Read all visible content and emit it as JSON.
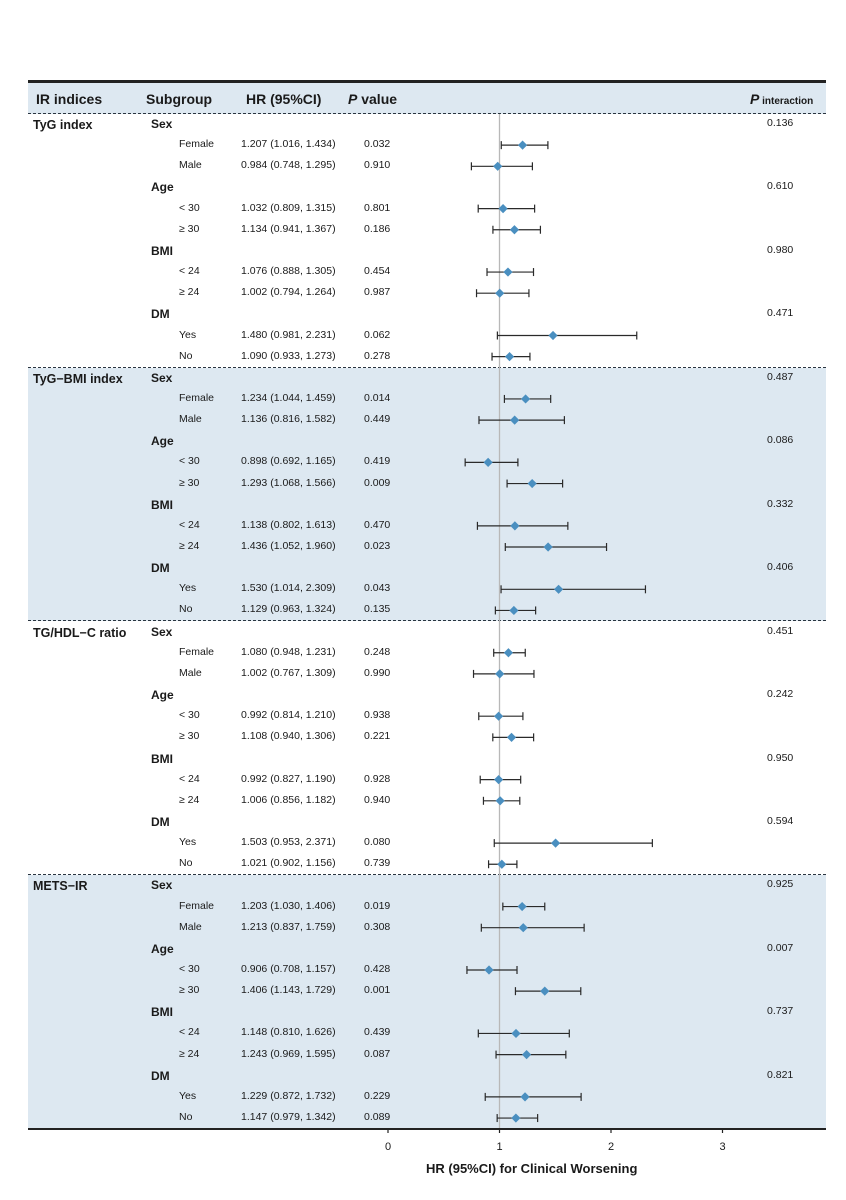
{
  "headers": {
    "ir_indices": "IR indices",
    "subgroup": "Subgroup",
    "hr": "HR (95%CI)",
    "p_italic": "P",
    "p_rest": " value",
    "pint_italic": "P",
    "pint_rest": " interaction"
  },
  "chart_data": {
    "type": "forest",
    "xlabel": "HR (95%CI) for Clinical Worsening",
    "x_ticks": [
      0,
      1,
      2,
      3
    ],
    "xlim": [
      0,
      3.3
    ],
    "reference_line": 1,
    "groups": [
      {
        "name": "TyG index",
        "subgroups": [
          {
            "name": "Sex",
            "p_interaction": "0.136",
            "levels": [
              {
                "label": "Female",
                "hr_text": "1.207 (1.016, 1.434)",
                "p": "0.032",
                "hr": 1.207,
                "lo": 1.016,
                "hi": 1.434
              },
              {
                "label": "Male",
                "hr_text": "0.984 (0.748, 1.295)",
                "p": "0.910",
                "hr": 0.984,
                "lo": 0.748,
                "hi": 1.295
              }
            ]
          },
          {
            "name": "Age",
            "p_interaction": "0.610",
            "levels": [
              {
                "label": "< 30",
                "hr_text": "1.032 (0.809, 1.315)",
                "p": "0.801",
                "hr": 1.032,
                "lo": 0.809,
                "hi": 1.315
              },
              {
                "label": "≥ 30",
                "hr_text": "1.134 (0.941, 1.367)",
                "p": "0.186",
                "hr": 1.134,
                "lo": 0.941,
                "hi": 1.367
              }
            ]
          },
          {
            "name": "BMI",
            "p_interaction": "0.980",
            "levels": [
              {
                "label": "< 24",
                "hr_text": "1.076 (0.888, 1.305)",
                "p": "0.454",
                "hr": 1.076,
                "lo": 0.888,
                "hi": 1.305
              },
              {
                "label": "≥ 24",
                "hr_text": "1.002 (0.794, 1.264)",
                "p": "0.987",
                "hr": 1.002,
                "lo": 0.794,
                "hi": 1.264
              }
            ]
          },
          {
            "name": "DM",
            "p_interaction": "0.471",
            "levels": [
              {
                "label": "Yes",
                "hr_text": "1.480 (0.981, 2.231)",
                "p": "0.062",
                "hr": 1.48,
                "lo": 0.981,
                "hi": 2.231
              },
              {
                "label": "No",
                "hr_text": "1.090 (0.933, 1.273)",
                "p": "0.278",
                "hr": 1.09,
                "lo": 0.933,
                "hi": 1.273
              }
            ]
          }
        ]
      },
      {
        "name": "TyG−BMI index",
        "subgroups": [
          {
            "name": "Sex",
            "p_interaction": "0.487",
            "levels": [
              {
                "label": "Female",
                "hr_text": "1.234 (1.044, 1.459)",
                "p": "0.014",
                "hr": 1.234,
                "lo": 1.044,
                "hi": 1.459
              },
              {
                "label": "Male",
                "hr_text": "1.136 (0.816, 1.582)",
                "p": "0.449",
                "hr": 1.136,
                "lo": 0.816,
                "hi": 1.582
              }
            ]
          },
          {
            "name": "Age",
            "p_interaction": "0.086",
            "levels": [
              {
                "label": "< 30",
                "hr_text": "0.898 (0.692, 1.165)",
                "p": "0.419",
                "hr": 0.898,
                "lo": 0.692,
                "hi": 1.165
              },
              {
                "label": "≥ 30",
                "hr_text": "1.293 (1.068, 1.566)",
                "p": "0.009",
                "hr": 1.293,
                "lo": 1.068,
                "hi": 1.566
              }
            ]
          },
          {
            "name": "BMI",
            "p_interaction": "0.332",
            "levels": [
              {
                "label": "< 24",
                "hr_text": "1.138 (0.802, 1.613)",
                "p": "0.470",
                "hr": 1.138,
                "lo": 0.802,
                "hi": 1.613
              },
              {
                "label": "≥ 24",
                "hr_text": "1.436 (1.052, 1.960)",
                "p": "0.023",
                "hr": 1.436,
                "lo": 1.052,
                "hi": 1.96
              }
            ]
          },
          {
            "name": "DM",
            "p_interaction": "0.406",
            "levels": [
              {
                "label": "Yes",
                "hr_text": "1.530 (1.014, 2.309)",
                "p": "0.043",
                "hr": 1.53,
                "lo": 1.014,
                "hi": 2.309
              },
              {
                "label": "No",
                "hr_text": "1.129 (0.963, 1.324)",
                "p": "0.135",
                "hr": 1.129,
                "lo": 0.963,
                "hi": 1.324
              }
            ]
          }
        ]
      },
      {
        "name": "TG/HDL−C ratio",
        "subgroups": [
          {
            "name": "Sex",
            "p_interaction": "0.451",
            "levels": [
              {
                "label": "Female",
                "hr_text": "1.080 (0.948, 1.231)",
                "p": "0.248",
                "hr": 1.08,
                "lo": 0.948,
                "hi": 1.231
              },
              {
                "label": "Male",
                "hr_text": "1.002 (0.767, 1.309)",
                "p": "0.990",
                "hr": 1.002,
                "lo": 0.767,
                "hi": 1.309
              }
            ]
          },
          {
            "name": "Age",
            "p_interaction": "0.242",
            "levels": [
              {
                "label": "< 30",
                "hr_text": "0.992 (0.814, 1.210)",
                "p": "0.938",
                "hr": 0.992,
                "lo": 0.814,
                "hi": 1.21
              },
              {
                "label": "≥ 30",
                "hr_text": "1.108 (0.940, 1.306)",
                "p": "0.221",
                "hr": 1.108,
                "lo": 0.94,
                "hi": 1.306
              }
            ]
          },
          {
            "name": "BMI",
            "p_interaction": "0.950",
            "levels": [
              {
                "label": "< 24",
                "hr_text": "0.992 (0.827, 1.190)",
                "p": "0.928",
                "hr": 0.992,
                "lo": 0.827,
                "hi": 1.19
              },
              {
                "label": "≥ 24",
                "hr_text": "1.006 (0.856, 1.182)",
                "p": "0.940",
                "hr": 1.006,
                "lo": 0.856,
                "hi": 1.182
              }
            ]
          },
          {
            "name": "DM",
            "p_interaction": "0.594",
            "levels": [
              {
                "label": "Yes",
                "hr_text": "1.503 (0.953, 2.371)",
                "p": "0.080",
                "hr": 1.503,
                "lo": 0.953,
                "hi": 2.371
              },
              {
                "label": "No",
                "hr_text": "1.021 (0.902, 1.156)",
                "p": "0.739",
                "hr": 1.021,
                "lo": 0.902,
                "hi": 1.156
              }
            ]
          }
        ]
      },
      {
        "name": "METS−IR",
        "subgroups": [
          {
            "name": "Sex",
            "p_interaction": "0.925",
            "levels": [
              {
                "label": "Female",
                "hr_text": "1.203 (1.030, 1.406)",
                "p": "0.019",
                "hr": 1.203,
                "lo": 1.03,
                "hi": 1.406
              },
              {
                "label": "Male",
                "hr_text": "1.213 (0.837, 1.759)",
                "p": "0.308",
                "hr": 1.213,
                "lo": 0.837,
                "hi": 1.759
              }
            ]
          },
          {
            "name": "Age",
            "p_interaction": "0.007",
            "levels": [
              {
                "label": "< 30",
                "hr_text": "0.906 (0.708, 1.157)",
                "p": "0.428",
                "hr": 0.906,
                "lo": 0.708,
                "hi": 1.157
              },
              {
                "label": "≥ 30",
                "hr_text": "1.406 (1.143, 1.729)",
                "p": "0.001",
                "hr": 1.406,
                "lo": 1.143,
                "hi": 1.729
              }
            ]
          },
          {
            "name": "BMI",
            "p_interaction": "0.737",
            "levels": [
              {
                "label": "< 24",
                "hr_text": "1.148 (0.810, 1.626)",
                "p": "0.439",
                "hr": 1.148,
                "lo": 0.81,
                "hi": 1.626
              },
              {
                "label": "≥ 24",
                "hr_text": "1.243 (0.969, 1.595)",
                "p": "0.087",
                "hr": 1.243,
                "lo": 0.969,
                "hi": 1.595
              }
            ]
          },
          {
            "name": "DM",
            "p_interaction": "0.821",
            "levels": [
              {
                "label": "Yes",
                "hr_text": "1.229 (0.872, 1.732)",
                "p": "0.229",
                "hr": 1.229,
                "lo": 0.872,
                "hi": 1.732
              },
              {
                "label": "No",
                "hr_text": "1.147 (0.979, 1.342)",
                "p": "0.089",
                "hr": 1.147,
                "lo": 0.979,
                "hi": 1.342
              }
            ]
          }
        ]
      }
    ]
  },
  "colors": {
    "band": "#dde8f1",
    "marker": "#4a8fc0",
    "whisker": "#2a2a2a",
    "reference_line": "#b8b8b8"
  }
}
